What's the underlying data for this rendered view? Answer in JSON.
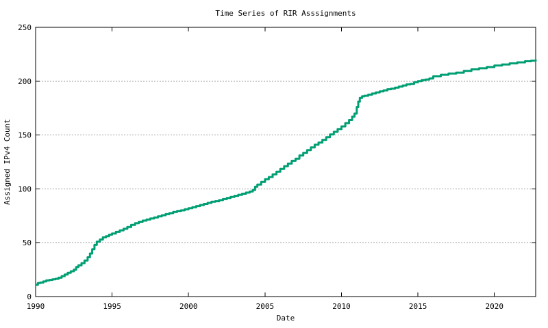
{
  "chart": {
    "title": "Time Series of RIR Asssignments",
    "xlabel": "Date",
    "ylabel": "Assigned IPv4 Count"
  },
  "chart_data": {
    "type": "line",
    "title": "Time Series of RIR Asssignments",
    "xlabel": "Date",
    "ylabel": "Assigned IPv4 Count",
    "xlim": [
      1990,
      2022.7
    ],
    "ylim": [
      0,
      250
    ],
    "x_ticks": [
      1990,
      1995,
      2000,
      2005,
      2010,
      2015,
      2020
    ],
    "y_ticks": [
      0,
      50,
      100,
      150,
      200,
      250
    ],
    "grid": "horizontal-dashed",
    "grid_color": "#9e9e9e",
    "legend": "none",
    "line_style": "steps",
    "line_color": "#009e73",
    "line_width": 3,
    "series": [
      {
        "name": "Assigned IPv4 Count",
        "x": [
          1990.0,
          1990.15,
          1990.3,
          1990.5,
          1990.7,
          1990.9,
          1991.1,
          1991.3,
          1991.5,
          1991.7,
          1991.9,
          1992.1,
          1992.3,
          1992.5,
          1992.65,
          1992.8,
          1993.0,
          1993.2,
          1993.4,
          1993.55,
          1993.7,
          1993.85,
          1994.0,
          1994.2,
          1994.4,
          1994.6,
          1994.8,
          1995.0,
          1995.25,
          1995.5,
          1995.75,
          1996.0,
          1996.25,
          1996.5,
          1996.75,
          1997.0,
          1997.25,
          1997.5,
          1997.75,
          1998.0,
          1998.25,
          1998.5,
          1998.75,
          1999.0,
          1999.25,
          1999.5,
          1999.75,
          2000.0,
          2000.25,
          2000.5,
          2000.75,
          2001.0,
          2001.25,
          2001.5,
          2001.75,
          2002.0,
          2002.25,
          2002.5,
          2002.75,
          2003.0,
          2003.25,
          2003.5,
          2003.75,
          2004.0,
          2004.2,
          2004.35,
          2004.5,
          2004.75,
          2005.0,
          2005.25,
          2005.5,
          2005.75,
          2006.0,
          2006.25,
          2006.5,
          2006.75,
          2007.0,
          2007.25,
          2007.5,
          2007.75,
          2008.0,
          2008.25,
          2008.5,
          2008.75,
          2009.0,
          2009.25,
          2009.5,
          2009.75,
          2010.0,
          2010.25,
          2010.5,
          2010.7,
          2010.85,
          2011.0,
          2011.1,
          2011.2,
          2011.35,
          2011.5,
          2011.75,
          2012.0,
          2012.25,
          2012.5,
          2012.75,
          2013.0,
          2013.25,
          2013.5,
          2013.75,
          2014.0,
          2014.25,
          2014.5,
          2014.75,
          2015.0,
          2015.25,
          2015.5,
          2015.75,
          2016.0,
          2016.5,
          2017.0,
          2017.5,
          2018.0,
          2018.5,
          2019.0,
          2019.5,
          2020.0,
          2020.5,
          2021.0,
          2021.5,
          2022.0,
          2022.4,
          2022.7
        ],
        "y": [
          11,
          12.5,
          13,
          14,
          15,
          15.5,
          16,
          16.5,
          17.5,
          19,
          20.5,
          22,
          23.5,
          25,
          27.5,
          29,
          31,
          33.5,
          36.5,
          40,
          44,
          48,
          51,
          53,
          55,
          56,
          57.5,
          58.5,
          60,
          61.5,
          63,
          64.5,
          66.5,
          68,
          69.5,
          70.5,
          71.5,
          72.5,
          73.5,
          74.5,
          75.5,
          76.5,
          77.5,
          78.5,
          79.5,
          80,
          81,
          82,
          83,
          84,
          85,
          86,
          87,
          88,
          88.5,
          89.5,
          90.5,
          91.5,
          92.5,
          93.5,
          94.5,
          95.5,
          96.5,
          97.5,
          99,
          102,
          104,
          106.5,
          109,
          111,
          113.5,
          116,
          118.5,
          121,
          123.5,
          126,
          128,
          131,
          133.5,
          136,
          138.5,
          141,
          143,
          145.5,
          148,
          150.5,
          153,
          155.5,
          158,
          161,
          164,
          167,
          170,
          176,
          181,
          184.5,
          186,
          186.5,
          187.5,
          188.5,
          189.5,
          190.5,
          191.5,
          192.5,
          193,
          194,
          195,
          196,
          197,
          197.5,
          199,
          200,
          201,
          201.5,
          202.5,
          204.5,
          206,
          207,
          208,
          209.5,
          211,
          212,
          213,
          214.5,
          215.5,
          216.5,
          217.5,
          218.5,
          219,
          220
        ]
      }
    ]
  }
}
